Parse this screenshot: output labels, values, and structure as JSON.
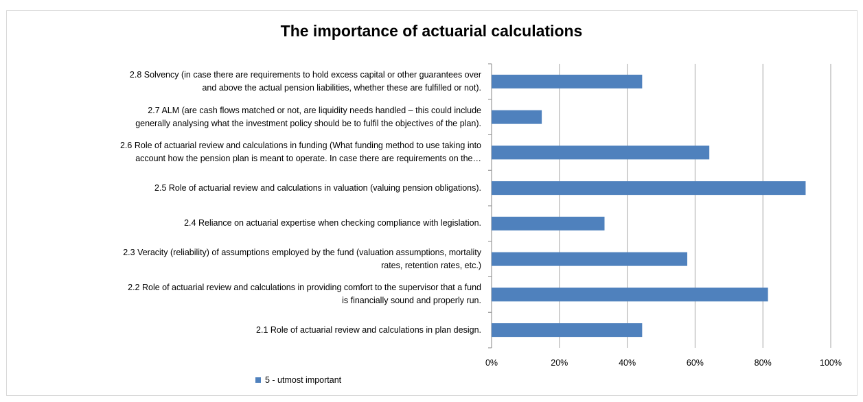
{
  "chart_data": {
    "type": "bar",
    "orientation": "horizontal",
    "title": "The importance of actuarial calculations",
    "categories": [
      "2.1 Role of actuarial review and calculations in plan design.",
      "2.2 Role of actuarial review and calculations in providing comfort to the supervisor that a fund is financially sound and properly run.",
      "2.3 Veracity (reliability) of assumptions employed by the fund (valuation assumptions, mortality rates, retention rates, etc.)",
      "2.4 Reliance on actuarial expertise when checking compliance with legislation.",
      "2.5 Role of actuarial review and calculations in valuation (valuing pension obligations).",
      "2.6 Role of actuarial review and calculations in funding (What funding method to use taking into account how the pension plan is meant to operate. In case there are requirements on the…",
      "2.7 ALM (are cash flows matched or not, are liquidity needs handled – this could include generally analysing what the investment policy should be to fulfil the objectives of the plan).",
      "2.8 Solvency (in case there are requirements to hold excess capital or other guarantees over and above the actual pension liabilities, whether these are fulfilled or not)."
    ],
    "category_lines": [
      [
        "2.1 Role of actuarial review and calculations in plan design."
      ],
      [
        "2.2 Role of actuarial review and calculations in providing comfort to the supervisor that a fund",
        "is financially sound and properly run."
      ],
      [
        "2.3 Veracity (reliability) of assumptions employed by the fund (valuation assumptions, mortality",
        "rates, retention rates, etc.)"
      ],
      [
        "2.4 Reliance on actuarial expertise when checking compliance with legislation."
      ],
      [
        "2.5 Role of actuarial review and calculations in valuation (valuing pension obligations)."
      ],
      [
        "2.6 Role of actuarial review and calculations in funding (What funding method to use taking into",
        "account how the pension plan is meant to operate. In case there are requirements on the…"
      ],
      [
        "2.7 ALM (are cash flows matched or not, are liquidity needs handled – this could include",
        "generally analysing what the investment policy should be to fulfil the objectives of the plan)."
      ],
      [
        "2.8 Solvency (in case there are requirements to hold excess capital or other guarantees over",
        "and above the actual pension liabilities, whether these are fulfilled or not)."
      ]
    ],
    "series": [
      {
        "name": "5 - utmost important",
        "values": [
          0.444,
          0.815,
          0.577,
          0.333,
          0.926,
          0.642,
          0.148,
          0.444
        ],
        "color": "#4f81bd"
      }
    ],
    "xlim": [
      0,
      1
    ],
    "xticks": [
      0,
      0.2,
      0.4,
      0.6,
      0.8,
      1.0
    ],
    "xtick_labels": [
      "0%",
      "20%",
      "40%",
      "60%",
      "80%",
      "100%"
    ],
    "grid": "vertical",
    "legend_position": "bottom-left",
    "colors": {
      "bar": "#4f81bd",
      "gridline": "#a6a6a6",
      "axis": "#868686"
    }
  }
}
